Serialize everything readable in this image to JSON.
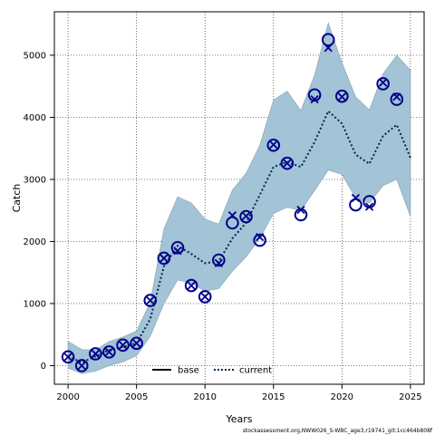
{
  "chart_data": {
    "type": "line",
    "xlabel": "Years",
    "ylabel": "Catch",
    "xlim": [
      1999,
      2026
    ],
    "ylim": [
      -300,
      5700
    ],
    "x_ticks": [
      2000,
      2005,
      2010,
      2015,
      2020,
      2025
    ],
    "y_ticks": [
      0,
      1000,
      2000,
      3000,
      4000,
      5000
    ],
    "grid": true,
    "legend_position": "bottom-center",
    "colors": {
      "band": "#a3c3d6",
      "band_edge": "#8aa0ae",
      "observed": "#00008b",
      "current_line": "#00264d",
      "base_line": "#000000"
    },
    "series": [
      {
        "name": "current",
        "style": "dotted",
        "x": [
          2000,
          2001,
          2002,
          2003,
          2004,
          2005,
          2006,
          2007,
          2008,
          2009,
          2010,
          2011,
          2012,
          2013,
          2014,
          2015,
          2016,
          2017,
          2018,
          2019,
          2020,
          2021,
          2022,
          2023,
          2024,
          2025
        ],
        "y": [
          150,
          50,
          150,
          250,
          300,
          360,
          750,
          1600,
          1930,
          1800,
          1650,
          1680,
          2050,
          2300,
          2750,
          3200,
          3280,
          3200,
          3600,
          4100,
          3900,
          3400,
          3250,
          3700,
          3880,
          3350
        ],
        "lower": [
          -40,
          -130,
          -90,
          0,
          60,
          160,
          470,
          1000,
          1380,
          1330,
          1200,
          1240,
          1520,
          1750,
          2050,
          2450,
          2550,
          2500,
          2820,
          3150,
          3080,
          2700,
          2620,
          2900,
          3000,
          2400
        ],
        "upper": [
          390,
          260,
          250,
          390,
          460,
          560,
          1020,
          2200,
          2720,
          2620,
          2360,
          2280,
          2830,
          3100,
          3550,
          4280,
          4420,
          4110,
          4680,
          5520,
          4880,
          4330,
          4120,
          4700,
          5000,
          4760
        ]
      },
      {
        "name": "base",
        "style": "solid",
        "x": [],
        "y": []
      }
    ],
    "observed": {
      "x": [
        2000,
        2001,
        2002,
        2003,
        2004,
        2005,
        2006,
        2007,
        2008,
        2009,
        2010,
        2011,
        2012,
        2013,
        2014,
        2015,
        2016,
        2017,
        2018,
        2019,
        2020,
        2021,
        2022,
        2023,
        2024
      ],
      "y": [
        140,
        0,
        190,
        220,
        330,
        360,
        1050,
        1730,
        1900,
        1290,
        1110,
        1700,
        2300,
        2400,
        2020,
        3550,
        3260,
        2430,
        4360,
        5250,
        4340,
        2590,
        2640,
        4540,
        4290
      ]
    },
    "predicted": {
      "x": [
        2000,
        2001,
        2002,
        2003,
        2004,
        2005,
        2006,
        2007,
        2008,
        2009,
        2010,
        2011,
        2012,
        2013,
        2014,
        2015,
        2016,
        2017,
        2018,
        2019,
        2020,
        2021,
        2022,
        2023,
        2024
      ],
      "y": [
        140,
        0,
        190,
        220,
        330,
        360,
        1050,
        1730,
        1850,
        1290,
        1110,
        1650,
        2420,
        2410,
        2070,
        3560,
        3260,
        2510,
        4290,
        5120,
        4330,
        2700,
        2560,
        4560,
        4330
      ]
    }
  },
  "legend": {
    "base_label": "base",
    "current_label": "current"
  },
  "footer_text": "stockassessment.org,NWW026_S-WBC_age3,r19741_git:1cc464b808f"
}
